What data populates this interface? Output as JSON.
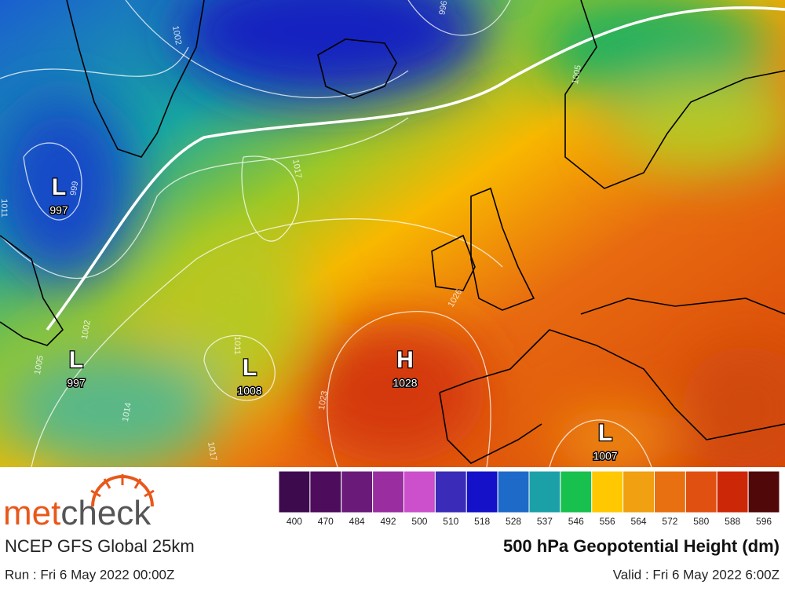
{
  "map": {
    "pressure_centers": [
      {
        "symbol": "L",
        "value": 997
      },
      {
        "symbol": "L",
        "value": 997
      },
      {
        "symbol": "L",
        "value": 1008
      },
      {
        "symbol": "H",
        "value": 1028
      },
      {
        "symbol": "L",
        "value": 1007
      }
    ],
    "isobar_labels": [
      "1002",
      "996",
      "1005",
      "999",
      "1011",
      "1017",
      "1011",
      "1026",
      "1023",
      "1014",
      "1017",
      "1002",
      "1005"
    ]
  },
  "legend": {
    "colors": [
      "#3d0a4e",
      "#4e0c5c",
      "#6a1a78",
      "#9a2ea0",
      "#cc4fcc",
      "#3a2bb8",
      "#1411c8",
      "#1e6ac8",
      "#1ca0a8",
      "#18c04e",
      "#ffc800",
      "#f0a010",
      "#e87010",
      "#e05010",
      "#cc2808",
      "#500808"
    ],
    "labels": [
      400,
      470,
      484,
      492,
      500,
      510,
      518,
      528,
      537,
      546,
      556,
      564,
      572,
      580,
      588,
      596
    ]
  },
  "footer": {
    "brand": [
      "met",
      "check"
    ],
    "model": "NCEP GFS Global 25km",
    "run": "Run : Fri 6 May 2022 00:00Z",
    "title": "500 hPa Geopotential Height (dm)",
    "valid": "Valid : Fri 6 May 2022 6:00Z"
  }
}
